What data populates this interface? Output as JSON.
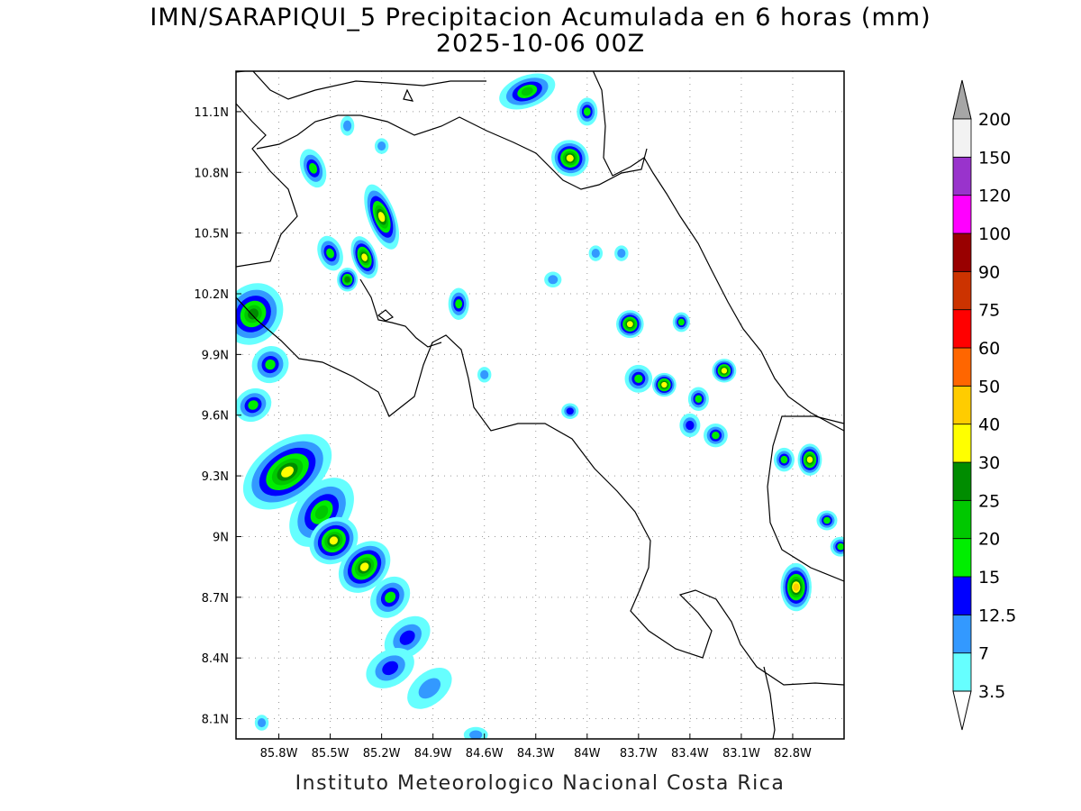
{
  "title": {
    "line1": "IMN/SARAPIQUI_5 Precipitacion Acumulada en 6 horas (mm)",
    "line2": "2025-10-06 00Z"
  },
  "footer": "Instituto Meteorologico Nacional Costa Rica",
  "map": {
    "lon_range": [
      -86.05,
      -82.5
    ],
    "lat_range": [
      8.0,
      11.3
    ],
    "x_ticks": [
      {
        "value": -85.8,
        "label": "85.8W"
      },
      {
        "value": -85.5,
        "label": "85.5W"
      },
      {
        "value": -85.2,
        "label": "85.2W"
      },
      {
        "value": -84.9,
        "label": "84.9W"
      },
      {
        "value": -84.6,
        "label": "84.6W"
      },
      {
        "value": -84.3,
        "label": "84.3W"
      },
      {
        "value": -84.0,
        "label": "84W"
      },
      {
        "value": -83.7,
        "label": "83.7W"
      },
      {
        "value": -83.4,
        "label": "83.4W"
      },
      {
        "value": -83.1,
        "label": "83.1W"
      },
      {
        "value": -82.8,
        "label": "82.8W"
      }
    ],
    "y_ticks": [
      {
        "value": 11.1,
        "label": "11.1N"
      },
      {
        "value": 10.8,
        "label": "10.8N"
      },
      {
        "value": 10.5,
        "label": "10.5N"
      },
      {
        "value": 10.2,
        "label": "10.2N"
      },
      {
        "value": 9.9,
        "label": "9.9N"
      },
      {
        "value": 9.6,
        "label": "9.6N"
      },
      {
        "value": 9.3,
        "label": "9.3N"
      },
      {
        "value": 9.0,
        "label": "9N"
      },
      {
        "value": 8.7,
        "label": "8.7N"
      },
      {
        "value": 8.4,
        "label": "8.4N"
      },
      {
        "value": 8.1,
        "label": "8.1N"
      }
    ],
    "grid": "dotted",
    "border_color": "#000000"
  },
  "colorbar": {
    "colors": [
      "#66ffff",
      "#3399ff",
      "#0000ff",
      "#00ee00",
      "#00c800",
      "#008c00",
      "#ffff00",
      "#ffcc00",
      "#ff6600",
      "#ff0000",
      "#cc3300",
      "#990000",
      "#ff00ff",
      "#9933cc",
      "#f2f2f2"
    ],
    "over_color": "#a6a6a6",
    "under_color": "#ffffff",
    "labels": [
      "3.5",
      "7",
      "12.5",
      "15",
      "20",
      "25",
      "30",
      "40",
      "50",
      "60",
      "75",
      "90",
      "100",
      "120",
      "150",
      "200"
    ]
  },
  "precip_cells": [
    {
      "lon": -85.75,
      "lat": 9.32,
      "dlon": 0.28,
      "dlat": 0.14,
      "angle": -35,
      "max": 6
    },
    {
      "lon": -85.55,
      "lat": 9.12,
      "dlon": 0.22,
      "dlat": 0.12,
      "angle": -50,
      "max": 4
    },
    {
      "lon": -85.48,
      "lat": 8.98,
      "dlon": 0.14,
      "dlat": 0.1,
      "angle": -40,
      "max": 6
    },
    {
      "lon": -85.3,
      "lat": 8.85,
      "dlon": 0.16,
      "dlat": 0.1,
      "angle": -45,
      "max": 6
    },
    {
      "lon": -85.15,
      "lat": 8.7,
      "dlon": 0.12,
      "dlat": 0.08,
      "angle": -50,
      "max": 3
    },
    {
      "lon": -85.05,
      "lat": 8.5,
      "dlon": 0.14,
      "dlat": 0.08,
      "angle": -40,
      "max": 2
    },
    {
      "lon": -85.15,
      "lat": 8.35,
      "dlon": 0.14,
      "dlat": 0.08,
      "angle": -30,
      "max": 2
    },
    {
      "lon": -84.92,
      "lat": 8.25,
      "dlon": 0.14,
      "dlat": 0.07,
      "angle": -40,
      "max": 1
    },
    {
      "lon": -85.95,
      "lat": 10.1,
      "dlon": 0.18,
      "dlat": 0.13,
      "angle": -50,
      "max": 5
    },
    {
      "lon": -85.85,
      "lat": 9.85,
      "dlon": 0.1,
      "dlat": 0.08,
      "angle": -50,
      "max": 3
    },
    {
      "lon": -85.95,
      "lat": 9.65,
      "dlon": 0.1,
      "dlat": 0.07,
      "angle": -30,
      "max": 3
    },
    {
      "lon": -85.6,
      "lat": 10.82,
      "dlon": 0.06,
      "dlat": 0.09,
      "angle": -20,
      "max": 3
    },
    {
      "lon": -85.2,
      "lat": 10.58,
      "dlon": 0.07,
      "dlat": 0.16,
      "angle": -20,
      "max": 6
    },
    {
      "lon": -85.3,
      "lat": 10.38,
      "dlon": 0.06,
      "dlat": 0.1,
      "angle": -20,
      "max": 6
    },
    {
      "lon": -85.5,
      "lat": 10.4,
      "dlon": 0.06,
      "dlat": 0.08,
      "angle": -20,
      "max": 3
    },
    {
      "lon": -85.4,
      "lat": 10.27,
      "dlon": 0.05,
      "dlat": 0.05,
      "angle": 0,
      "max": 5
    },
    {
      "lon": -84.75,
      "lat": 10.15,
      "dlon": 0.05,
      "dlat": 0.07,
      "angle": 0,
      "max": 3
    },
    {
      "lon": -84.35,
      "lat": 11.2,
      "dlon": 0.16,
      "dlat": 0.07,
      "angle": -20,
      "max": 4
    },
    {
      "lon": -84.1,
      "lat": 10.87,
      "dlon": 0.1,
      "dlat": 0.08,
      "angle": 30,
      "max": 6
    },
    {
      "lon": -84.0,
      "lat": 11.1,
      "dlon": 0.05,
      "dlat": 0.06,
      "angle": 0,
      "max": 3
    },
    {
      "lon": -83.75,
      "lat": 10.05,
      "dlon": 0.07,
      "dlat": 0.06,
      "angle": 0,
      "max": 6
    },
    {
      "lon": -83.45,
      "lat": 10.06,
      "dlon": 0.04,
      "dlat": 0.04,
      "angle": 0,
      "max": 3
    },
    {
      "lon": -83.55,
      "lat": 9.75,
      "dlon": 0.06,
      "dlat": 0.05,
      "angle": 0,
      "max": 6
    },
    {
      "lon": -83.7,
      "lat": 9.78,
      "dlon": 0.07,
      "dlat": 0.06,
      "angle": 0,
      "max": 3
    },
    {
      "lon": -83.2,
      "lat": 9.82,
      "dlon": 0.06,
      "dlat": 0.05,
      "angle": 0,
      "max": 6
    },
    {
      "lon": -83.35,
      "lat": 9.68,
      "dlon": 0.05,
      "dlat": 0.05,
      "angle": 0,
      "max": 3
    },
    {
      "lon": -83.25,
      "lat": 9.5,
      "dlon": 0.06,
      "dlat": 0.05,
      "angle": 0,
      "max": 3
    },
    {
      "lon": -83.4,
      "lat": 9.55,
      "dlon": 0.05,
      "dlat": 0.05,
      "angle": 0,
      "max": 2
    },
    {
      "lon": -82.78,
      "lat": 8.75,
      "dlon": 0.08,
      "dlat": 0.11,
      "angle": 0,
      "max": 7
    },
    {
      "lon": -82.7,
      "lat": 9.38,
      "dlon": 0.06,
      "dlat": 0.07,
      "angle": 0,
      "max": 6
    },
    {
      "lon": -82.85,
      "lat": 9.38,
      "dlon": 0.05,
      "dlat": 0.05,
      "angle": 0,
      "max": 3
    },
    {
      "lon": -82.6,
      "lat": 9.08,
      "dlon": 0.05,
      "dlat": 0.04,
      "angle": 0,
      "max": 3
    },
    {
      "lon": -82.52,
      "lat": 8.95,
      "dlon": 0.05,
      "dlat": 0.04,
      "angle": 0,
      "max": 3
    },
    {
      "lon": -84.6,
      "lat": 9.8,
      "dlon": 0.03,
      "dlat": 0.03,
      "angle": 0,
      "max": 1
    },
    {
      "lon": -84.1,
      "lat": 9.62,
      "dlon": 0.04,
      "dlat": 0.03,
      "angle": 0,
      "max": 2
    },
    {
      "lon": -83.95,
      "lat": 10.4,
      "dlon": 0.03,
      "dlat": 0.03,
      "angle": 0,
      "max": 1
    },
    {
      "lon": -84.2,
      "lat": 10.27,
      "dlon": 0.04,
      "dlat": 0.03,
      "angle": 0,
      "max": 1
    },
    {
      "lon": -85.9,
      "lat": 8.08,
      "dlon": 0.03,
      "dlat": 0.03,
      "angle": 0,
      "max": 1
    },
    {
      "lon": -84.65,
      "lat": 8.02,
      "dlon": 0.06,
      "dlat": 0.03,
      "angle": 0,
      "max": 1
    },
    {
      "lon": -85.2,
      "lat": 10.93,
      "dlon": 0.03,
      "dlat": 0.03,
      "angle": 0,
      "max": 1
    },
    {
      "lon": -85.4,
      "lat": 11.03,
      "dlon": 0.03,
      "dlat": 0.04,
      "angle": 0,
      "max": 1
    },
    {
      "lon": -83.8,
      "lat": 10.4,
      "dlon": 0.03,
      "dlat": 0.03,
      "angle": 0,
      "max": 1
    }
  ]
}
